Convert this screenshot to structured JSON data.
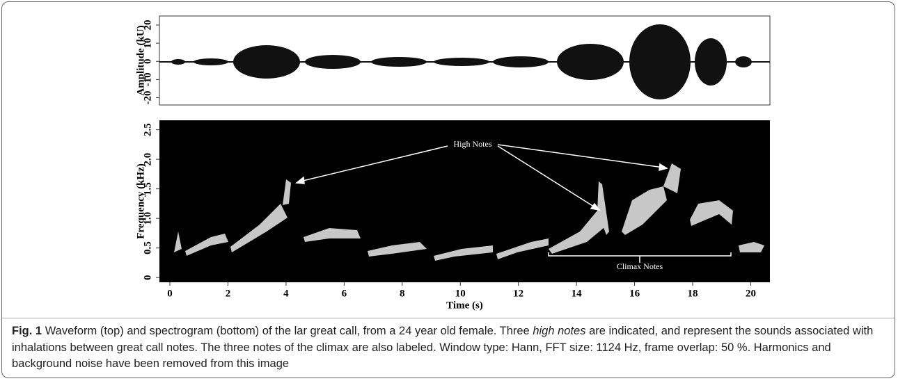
{
  "chart_data": [
    {
      "type": "waveform",
      "y_label": "Amplitude (kU)",
      "ylim": [
        -24,
        25
      ],
      "yticks": [
        -20,
        -10,
        0,
        10,
        20
      ]
    },
    {
      "type": "spectrogram",
      "x_label": "Time (s)",
      "y_label": "Frequency (kHz)",
      "xlim": [
        -0.36,
        20.66
      ],
      "xticks": [
        0,
        2,
        4,
        6,
        8,
        10,
        12,
        14,
        16,
        18,
        20
      ],
      "ylim": [
        -0.08,
        2.66
      ],
      "yticks": [
        0,
        0.5,
        {
          "value": 1,
          "label": "1.0"
        },
        1.5,
        {
          "value": 2,
          "label": "2.0"
        },
        2.5
      ],
      "annotations": [
        "High Notes",
        "Climax Notes"
      ]
    }
  ],
  "caption": {
    "label": "Fig. 1",
    "text_before": "Waveform (top) and spectrogram (bottom) of the lar great call, from a 24 year old female. Three ",
    "emphasis": "high notes",
    "text_after": " are indicated, and represent the sounds associated with inhalations between great call notes. The three notes of the climax are also labeled. Window type: Hann, FFT size: 1124 Hz, frame overlap: 50 %. Harmonics and background noise have been removed from this image"
  }
}
